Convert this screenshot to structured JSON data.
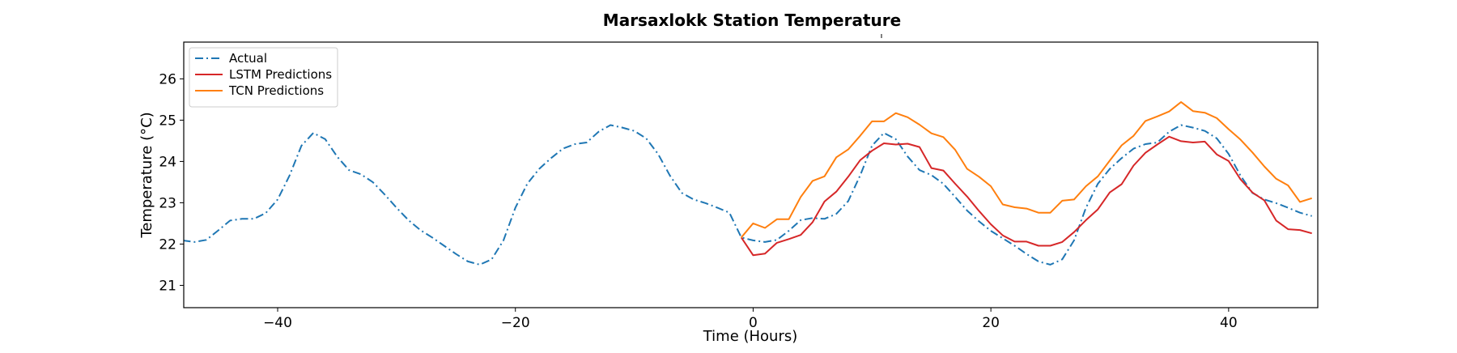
{
  "chart_data": {
    "type": "line",
    "title": "Marsaxlokk Station Temperature",
    "xlabel": "Time (Hours)",
    "ylabel": "Temperature (°C)",
    "xlim": [
      -47.9,
      47.5
    ],
    "ylim": [
      20.46,
      26.89
    ],
    "xticks": [
      -40,
      -20,
      0,
      20,
      40
    ],
    "xtick_labels": [
      "−40",
      "−20",
      "0",
      "20",
      "40"
    ],
    "yticks": [
      21,
      22,
      23,
      24,
      25,
      26
    ],
    "ytick_labels": [
      "21",
      "22",
      "23",
      "24",
      "25",
      "26"
    ],
    "grid": false,
    "legend_position": "top-left",
    "series": [
      {
        "name": "Actual",
        "color": "#1f77b4",
        "style": "dashdot",
        "x_start": -48,
        "values": [
          22.09,
          22.05,
          22.1,
          22.33,
          22.57,
          22.61,
          22.61,
          22.75,
          23.08,
          23.66,
          24.38,
          24.69,
          24.54,
          24.12,
          23.79,
          23.69,
          23.5,
          23.2,
          22.88,
          22.58,
          22.34,
          22.16,
          21.96,
          21.76,
          21.58,
          21.5,
          21.63,
          22.09,
          22.88,
          23.46,
          23.82,
          24.08,
          24.31,
          24.42,
          24.46,
          24.72,
          24.88,
          24.82,
          24.74,
          24.56,
          24.18,
          23.66,
          23.24,
          23.08,
          22.99,
          22.88,
          22.76,
          22.16,
          22.09,
          22.05,
          22.1,
          22.32,
          22.58,
          22.63,
          22.61,
          22.73,
          23.04,
          23.66,
          24.38,
          24.69,
          24.54,
          24.12,
          23.79,
          23.67,
          23.46,
          23.14,
          22.81,
          22.55,
          22.32,
          22.14,
          21.96,
          21.76,
          21.58,
          21.5,
          21.63,
          22.09,
          22.88,
          23.46,
          23.82,
          24.08,
          24.31,
          24.42,
          24.46,
          24.72,
          24.88,
          24.82,
          24.74,
          24.56,
          24.18,
          23.66,
          23.24,
          23.08,
          22.99,
          22.88,
          22.76,
          22.68
        ]
      },
      {
        "name": "LSTM Predictions",
        "color": "#d62728",
        "style": "solid",
        "x_start": -1,
        "values": [
          22.16,
          21.73,
          21.77,
          22.03,
          22.12,
          22.22,
          22.53,
          23.03,
          23.27,
          23.63,
          24.03,
          24.26,
          24.44,
          24.41,
          24.43,
          24.35,
          23.84,
          23.78,
          23.46,
          23.15,
          22.8,
          22.48,
          22.21,
          22.06,
          22.06,
          21.96,
          21.96,
          22.05,
          22.29,
          22.58,
          22.84,
          23.25,
          23.45,
          23.9,
          24.21,
          24.41,
          24.6,
          24.49,
          24.46,
          24.48,
          24.17,
          24.01,
          23.57,
          23.25,
          23.06,
          22.57,
          22.36,
          22.34,
          22.26
        ]
      },
      {
        "name": "TCN Predictions",
        "color": "#ff7f0e",
        "style": "solid",
        "x_start": -1,
        "values": [
          22.16,
          22.5,
          22.39,
          22.6,
          22.6,
          23.14,
          23.53,
          23.64,
          24.1,
          24.29,
          24.62,
          24.97,
          24.97,
          25.17,
          25.07,
          24.89,
          24.68,
          24.59,
          24.28,
          23.82,
          23.63,
          23.4,
          22.96,
          22.89,
          22.86,
          22.76,
          22.76,
          23.05,
          23.08,
          23.4,
          23.64,
          24.02,
          24.39,
          24.62,
          24.98,
          25.09,
          25.21,
          25.44,
          25.22,
          25.18,
          25.05,
          24.78,
          24.53,
          24.22,
          23.88,
          23.58,
          23.42,
          23.02,
          23.11
        ]
      }
    ]
  }
}
